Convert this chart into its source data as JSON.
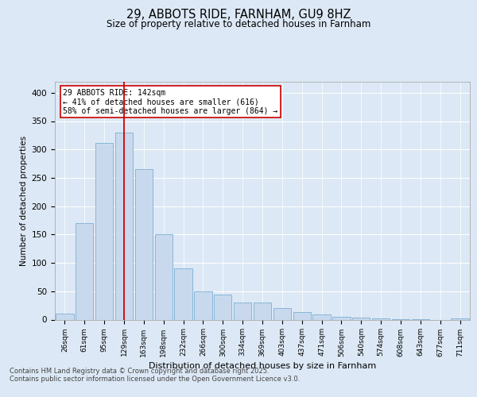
{
  "title1": "29, ABBOTS RIDE, FARNHAM, GU9 8HZ",
  "title2": "Size of property relative to detached houses in Farnham",
  "xlabel": "Distribution of detached houses by size in Farnham",
  "ylabel": "Number of detached properties",
  "bar_labels": [
    "26sqm",
    "61sqm",
    "95sqm",
    "129sqm",
    "163sqm",
    "198sqm",
    "232sqm",
    "266sqm",
    "300sqm",
    "334sqm",
    "369sqm",
    "403sqm",
    "437sqm",
    "471sqm",
    "506sqm",
    "540sqm",
    "574sqm",
    "608sqm",
    "643sqm",
    "677sqm",
    "711sqm"
  ],
  "bar_values": [
    10,
    170,
    312,
    330,
    265,
    150,
    91,
    50,
    44,
    30,
    30,
    21,
    13,
    9,
    5,
    3,
    2,
    1,
    1,
    0,
    2
  ],
  "bar_color": "#c9d9ed",
  "bar_edge_color": "#7bafd4",
  "red_line_x": 3.5,
  "annotation_text": "29 ABBOTS RIDE: 142sqm\n← 41% of detached houses are smaller (616)\n58% of semi-detached houses are larger (864) →",
  "annotation_box_color": "#ffffff",
  "annotation_box_edge_color": "#cc0000",
  "ylim": [
    0,
    420
  ],
  "yticks": [
    0,
    50,
    100,
    150,
    200,
    250,
    300,
    350,
    400
  ],
  "background_color": "#dce8f5",
  "plot_bg_color": "#dce8f5",
  "grid_color": "#ffffff",
  "footer_line1": "Contains HM Land Registry data © Crown copyright and database right 2025.",
  "footer_line2": "Contains public sector information licensed under the Open Government Licence v3.0."
}
